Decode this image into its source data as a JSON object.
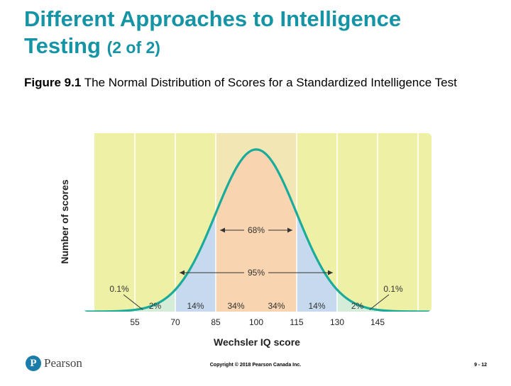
{
  "slide": {
    "title_line1": "Different Approaches to Intelligence",
    "title_line2": "Testing",
    "title_suffix": "(2 of 2)",
    "caption_label": "Figure 9.1",
    "caption_text": " The Normal Distribution of Scores for a Standardized Intelligence Test"
  },
  "chart_data": {
    "type": "area",
    "xlabel": "Wechsler IQ score",
    "ylabel": "Number of scores",
    "xlim": [
      40,
      175
    ],
    "mean": 100,
    "sd": 15,
    "x_ticks": [
      "55",
      "70",
      "85",
      "100",
      "115",
      "130",
      "145"
    ],
    "bands": [
      {
        "from": 40,
        "to": 55,
        "color": "#eef0a6"
      },
      {
        "from": 55,
        "to": 70,
        "color": "#eef0a6"
      },
      {
        "from": 70,
        "to": 85,
        "color": "#eef0a6"
      },
      {
        "from": 85,
        "to": 100,
        "color": "#f1e6b4"
      },
      {
        "from": 100,
        "to": 115,
        "color": "#f1e6b4"
      },
      {
        "from": 115,
        "to": 130,
        "color": "#eef0a6"
      },
      {
        "from": 130,
        "to": 145,
        "color": "#eef0a6"
      },
      {
        "from": 145,
        "to": 175,
        "color": "#eef0a6"
      }
    ],
    "area_fills": [
      {
        "from": 40,
        "to": 55,
        "color": "#d5ecd8"
      },
      {
        "from": 55,
        "to": 70,
        "color": "#d5ecd8"
      },
      {
        "from": 70,
        "to": 85,
        "color": "#c6d9ef"
      },
      {
        "from": 85,
        "to": 100,
        "color": "#f8d4b0"
      },
      {
        "from": 100,
        "to": 115,
        "color": "#f8d4b0"
      },
      {
        "from": 115,
        "to": 130,
        "color": "#c6d9ef"
      },
      {
        "from": 130,
        "to": 145,
        "color": "#d5ecd8"
      },
      {
        "from": 145,
        "to": 175,
        "color": "#d5ecd8"
      }
    ],
    "segment_labels": [
      {
        "text": "2%",
        "x": 62.5
      },
      {
        "text": "14%",
        "x": 77.5
      },
      {
        "text": "34%",
        "x": 92.5
      },
      {
        "text": "34%",
        "x": 107.5
      },
      {
        "text": "14%",
        "x": 122.5
      },
      {
        "text": "2%",
        "x": 137.5
      }
    ],
    "tail_labels": [
      {
        "text": "0.1%",
        "x": 50,
        "pointer_x": 58
      },
      {
        "text": "0.1%",
        "x": 150,
        "pointer_x": 142
      }
    ],
    "ranges": [
      {
        "text": "68%",
        "from": 85,
        "to": 115
      },
      {
        "text": "95%",
        "from": 70,
        "to": 130
      }
    ],
    "curve_color": "#1aab9b",
    "grid": true
  },
  "footer": {
    "brand": "Pearson",
    "logo_letter": "P",
    "copyright": "Copyright © 2018 Pearson Canada Inc.",
    "page": "9 - 12"
  }
}
